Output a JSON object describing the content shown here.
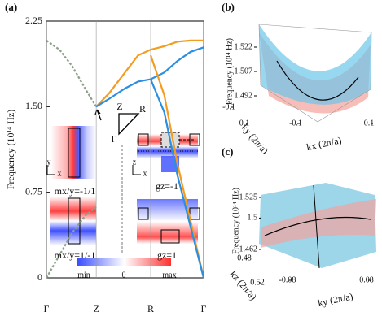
{
  "chart_data": [
    {
      "type": "line",
      "label": "(a)",
      "ylabel": "Frequency (10¹⁴ Hz)",
      "x": [
        0,
        0.25,
        0.5,
        0.75,
        0.95,
        1.2,
        1.5,
        1.75,
        1.99,
        2.25,
        2.5,
        2.75,
        3
      ],
      "xlim": [
        0,
        3
      ],
      "xticks": [
        {
          "value": 0,
          "label": "Γ"
        },
        {
          "value": 0.95,
          "label": "Z"
        },
        {
          "value": 1.99,
          "label": "R"
        },
        {
          "value": 3,
          "label": "Γ"
        }
      ],
      "ylim": [
        0,
        2.25
      ],
      "yticks": [
        0,
        0.75,
        {
          "value": 1.5,
          "label": "1.50"
        },
        2.25
      ],
      "series": [
        {
          "color": "#f39c1f",
          "values": [
            null,
            null,
            null,
            null,
            1.5,
            1.62,
            1.8,
            1.95,
            2.0,
            2.03,
            2.07,
            2.08,
            2.08
          ]
        },
        {
          "color": "#2d8fe0",
          "values": [
            null,
            null,
            null,
            null,
            1.5,
            1.57,
            1.66,
            1.72,
            1.74,
            1.8,
            1.9,
            1.98,
            2.02
          ]
        },
        {
          "color": "#f39c1f",
          "values": [
            null,
            null,
            null,
            null,
            null,
            null,
            null,
            null,
            1.95,
            1.6,
            1.0,
            0.5,
            0
          ]
        },
        {
          "color": "#2d8fe0",
          "values": [
            null,
            null,
            null,
            null,
            null,
            null,
            null,
            null,
            1.74,
            1.45,
            0.9,
            0.45,
            0
          ]
        },
        {
          "color": "#8da08a",
          "dashed": true,
          "values": [
            2.08,
            2.0,
            1.85,
            1.65,
            1.5,
            null,
            null,
            null,
            null,
            null,
            null,
            null,
            null
          ]
        },
        {
          "color": "#8da08a",
          "dashed": true,
          "values": [
            0,
            0.2,
            0.4,
            0.55,
            0.62,
            null,
            null,
            null,
            null,
            null,
            null,
            null,
            null
          ]
        }
      ],
      "annotations": [
        "Z",
        "R",
        "Γ",
        "mx/y=-1/1",
        "mx/y=1/-1",
        "gz=-1",
        "gz=1",
        "min",
        "0",
        "max",
        "y",
        "x",
        "z",
        "x"
      ]
    },
    {
      "type": "surface",
      "label": "(b)",
      "zlabel": "Frequency (10¹⁴ Hz)",
      "xlabel": "kx (2π/a)",
      "ylabel": "ky (2π/a)",
      "zlim": [
        1.492,
        1.522
      ],
      "zticks": [
        1.492,
        1.507,
        1.522
      ],
      "xlim": [
        -0.1,
        0.1
      ],
      "xticks": [
        -0.1,
        0.1
      ],
      "ylim": [
        -0.1,
        0.1
      ],
      "yticks": [
        -0.1,
        0.1
      ]
    },
    {
      "type": "surface",
      "label": "(c)",
      "zlabel": "Frequency (10¹⁴ Hz)",
      "xlabel": "ky (2π/a)",
      "ylabel": "kz (2π/a)",
      "zlim": [
        1.462,
        1.525
      ],
      "zticks": [
        1.462,
        1.5,
        1.525
      ],
      "xlim": [
        -0.08,
        0.08
      ],
      "xticks": [
        -0.08,
        0.08
      ],
      "ylim": [
        0.48,
        0.52
      ],
      "yticks": [
        0.48,
        0.52
      ]
    }
  ]
}
